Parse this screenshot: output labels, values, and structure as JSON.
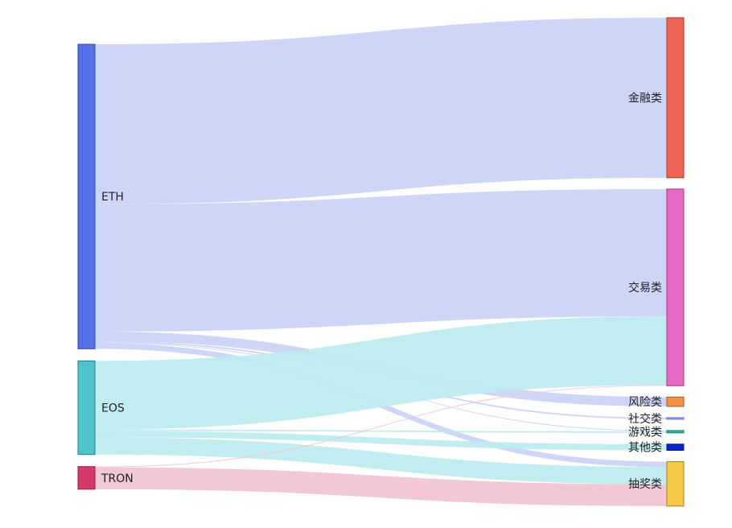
{
  "chart_data": {
    "type": "sankey",
    "title": "",
    "value_unit": "",
    "sources": [
      {
        "id": "ETH",
        "label": "ETH",
        "color": "#5572e8",
        "edge": "#34499a",
        "link_color": "#c9d2f6"
      },
      {
        "id": "EOS",
        "label": "EOS",
        "color": "#4fc3cd",
        "edge": "#2a7f86",
        "link_color": "#bdebef"
      },
      {
        "id": "TRON",
        "label": "TRON",
        "color": "#d63a6a",
        "edge": "#8a2447",
        "link_color": "#f1c3d2"
      }
    ],
    "targets": [
      {
        "id": "finance",
        "label": "金融类",
        "color": "#ef6657",
        "edge": "#9b3a31"
      },
      {
        "id": "exchange",
        "label": "交易类",
        "color": "#e66ac4",
        "edge": "#9a3f81"
      },
      {
        "id": "risk",
        "label": "风险类",
        "color": "#f0924a",
        "edge": "#a35c2b"
      },
      {
        "id": "social",
        "label": "社交类",
        "color": "#a9b6f2",
        "edge": "#5b6ec4"
      },
      {
        "id": "game",
        "label": "游戏类",
        "color": "#2bb7a9",
        "edge": "#1c7c72"
      },
      {
        "id": "other",
        "label": "其他类",
        "color": "#1024c9",
        "edge": "#0a1685"
      },
      {
        "id": "lottery",
        "label": "抽奖类",
        "color": "#f5c848",
        "edge": "#a0832e"
      }
    ],
    "links": [
      {
        "source": "ETH",
        "target": "finance",
        "value": 205
      },
      {
        "source": "ETH",
        "target": "exchange",
        "value": 163
      },
      {
        "source": "ETH",
        "target": "risk",
        "value": 12
      },
      {
        "source": "ETH",
        "target": "social",
        "value": 2
      },
      {
        "source": "ETH",
        "target": "game",
        "value": 1
      },
      {
        "source": "ETH",
        "target": "lottery",
        "value": 7
      },
      {
        "source": "EOS",
        "target": "exchange",
        "value": 88
      },
      {
        "source": "EOS",
        "target": "game",
        "value": 2
      },
      {
        "source": "EOS",
        "target": "other",
        "value": 8
      },
      {
        "source": "EOS",
        "target": "lottery",
        "value": 22
      },
      {
        "source": "TRON",
        "target": "exchange",
        "value": 1
      },
      {
        "source": "TRON",
        "target": "lottery",
        "value": 28
      }
    ]
  }
}
